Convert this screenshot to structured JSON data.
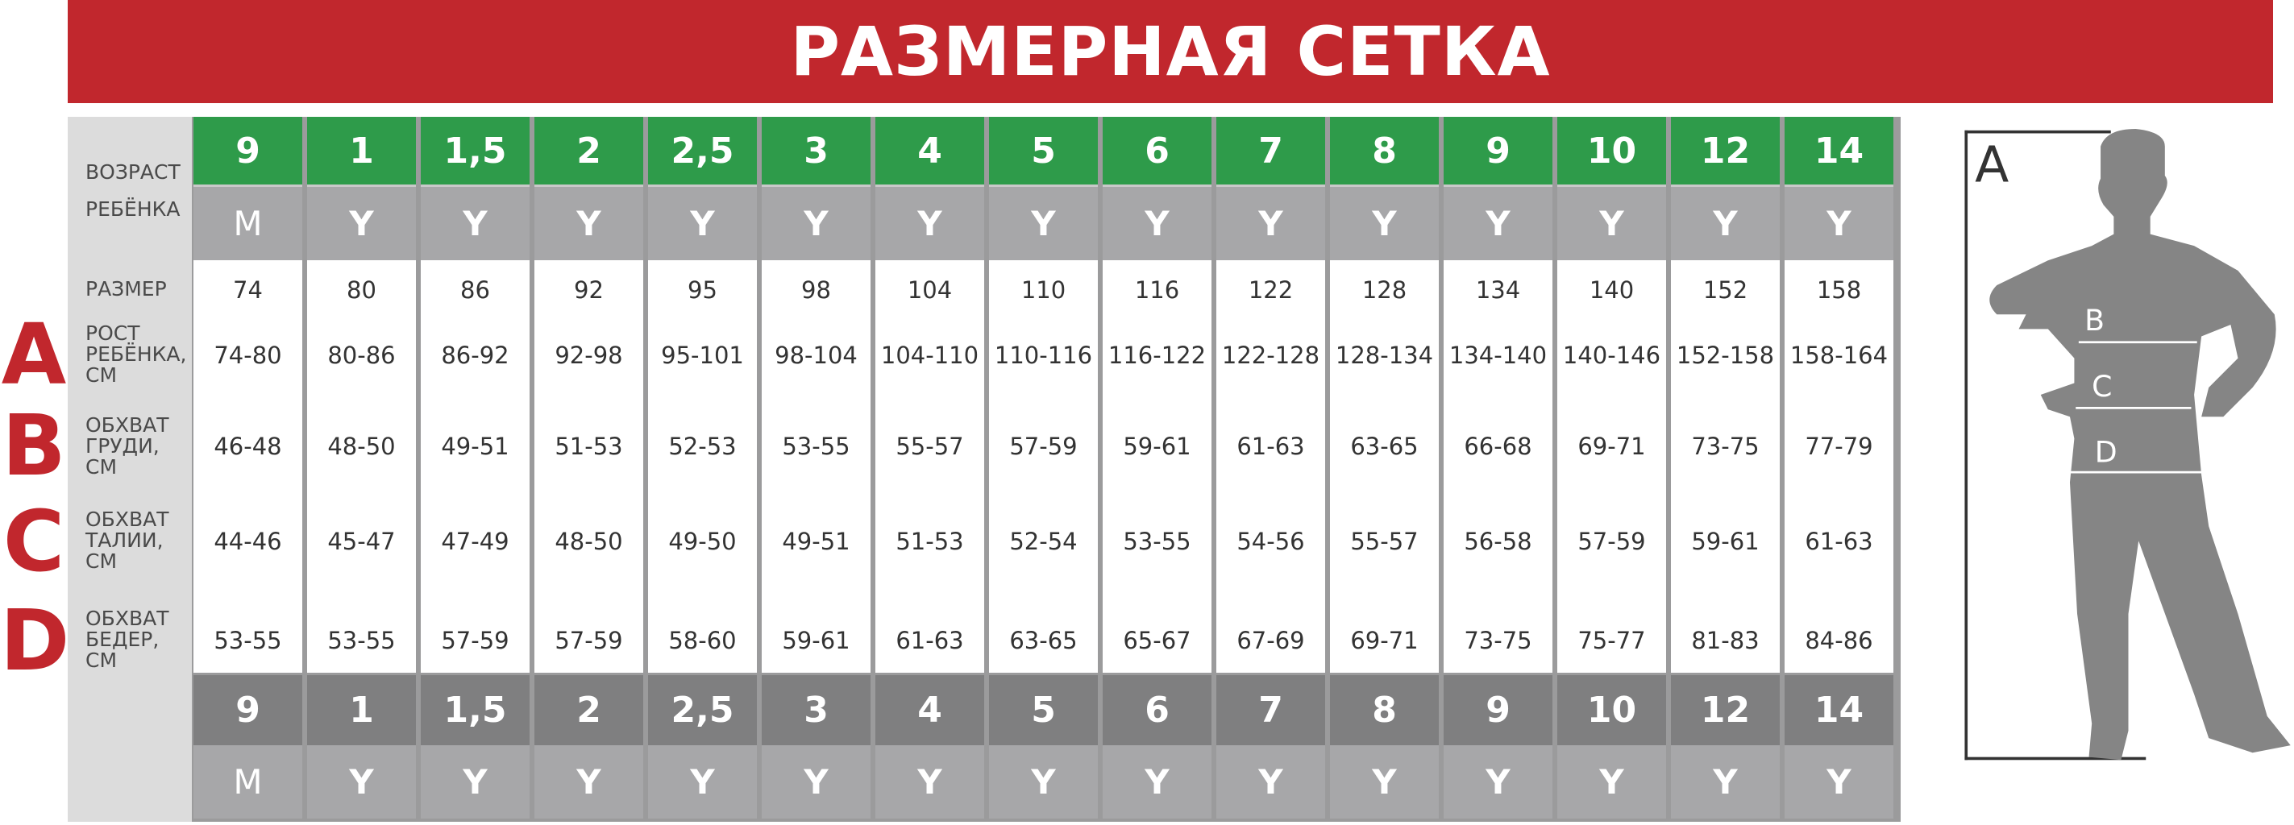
{
  "title": "РАЗМЕРНАЯ СЕТКА",
  "row_labels": {
    "age": [
      "ВОЗРАСТ",
      "РЕБЁНКА"
    ],
    "size": [
      "РАЗМЕР"
    ],
    "height": [
      "РОСТ",
      "РЕБЁНКА,",
      "СМ"
    ],
    "chest": [
      "ОБХВАТ",
      "ГРУДИ,",
      "СМ"
    ],
    "waist": [
      "ОБХВАТ",
      "ТАЛИИ,",
      "СМ"
    ],
    "hips": [
      "ОБХВАТ",
      "БЕДЕР,",
      "СМ"
    ]
  },
  "measure_letters": [
    "A",
    "B",
    "C",
    "D"
  ],
  "figure_labels": [
    "A",
    "B",
    "C",
    "D"
  ],
  "columns": [
    {
      "age": "9",
      "unit": "M",
      "size": "74",
      "height": "74-80",
      "chest": "46-48",
      "waist": "44-46",
      "hips": "53-55"
    },
    {
      "age": "1",
      "unit": "Y",
      "size": "80",
      "height": "80-86",
      "chest": "48-50",
      "waist": "45-47",
      "hips": "53-55"
    },
    {
      "age": "1,5",
      "unit": "Y",
      "size": "86",
      "height": "86-92",
      "chest": "49-51",
      "waist": "47-49",
      "hips": "57-59"
    },
    {
      "age": "2",
      "unit": "Y",
      "size": "92",
      "height": "92-98",
      "chest": "51-53",
      "waist": "48-50",
      "hips": "57-59"
    },
    {
      "age": "2,5",
      "unit": "Y",
      "size": "95",
      "height": "95-101",
      "chest": "52-53",
      "waist": "49-50",
      "hips": "58-60"
    },
    {
      "age": "3",
      "unit": "Y",
      "size": "98",
      "height": "98-104",
      "chest": "53-55",
      "waist": "49-51",
      "hips": "59-61"
    },
    {
      "age": "4",
      "unit": "Y",
      "size": "104",
      "height": "104-110",
      "chest": "55-57",
      "waist": "51-53",
      "hips": "61-63"
    },
    {
      "age": "5",
      "unit": "Y",
      "size": "110",
      "height": "110-116",
      "chest": "57-59",
      "waist": "52-54",
      "hips": "63-65"
    },
    {
      "age": "6",
      "unit": "Y",
      "size": "116",
      "height": "116-122",
      "chest": "59-61",
      "waist": "53-55",
      "hips": "65-67"
    },
    {
      "age": "7",
      "unit": "Y",
      "size": "122",
      "height": "122-128",
      "chest": "61-63",
      "waist": "54-56",
      "hips": "67-69"
    },
    {
      "age": "8",
      "unit": "Y",
      "size": "128",
      "height": "128-134",
      "chest": "63-65",
      "waist": "55-57",
      "hips": "69-71"
    },
    {
      "age": "9",
      "unit": "Y",
      "size": "134",
      "height": "134-140",
      "chest": "66-68",
      "waist": "56-58",
      "hips": "73-75"
    },
    {
      "age": "10",
      "unit": "Y",
      "size": "140",
      "height": "140-146",
      "chest": "69-71",
      "waist": "57-59",
      "hips": "75-77"
    },
    {
      "age": "12",
      "unit": "Y",
      "size": "152",
      "height": "152-158",
      "chest": "73-75",
      "waist": "59-61",
      "hips": "81-83"
    },
    {
      "age": "14",
      "unit": "Y",
      "size": "158",
      "height": "158-164",
      "chest": "77-79",
      "waist": "61-63",
      "hips": "84-86"
    }
  ],
  "colors": {
    "title_bg": "#c1272d",
    "age_header": "#2e9b4a",
    "unit_row": "#a7a7a9",
    "age_footer": "#7f7f80",
    "silhouette": "#858585"
  }
}
